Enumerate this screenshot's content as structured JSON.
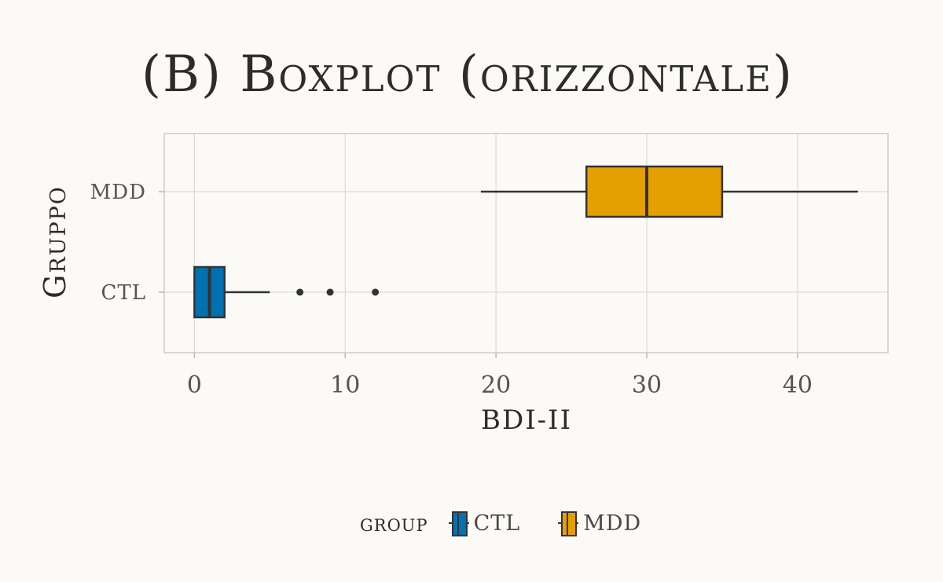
{
  "chart_data": {
    "type": "boxplot",
    "orientation": "horizontal",
    "title": "(B) Boxplot (orizzontale)",
    "xlabel": "BDI-II",
    "ylabel": "Gruppo",
    "xlim": [
      -2,
      46
    ],
    "xticks": [
      0,
      10,
      20,
      30,
      40
    ],
    "xtick_labels": [
      "0",
      "10",
      "20",
      "30",
      "40"
    ],
    "categories": [
      "CTL",
      "MDD"
    ],
    "series": [
      {
        "name": "CTL",
        "color": "#0072b2",
        "whisker_low": 0,
        "q1": 0,
        "median": 1,
        "q3": 2,
        "whisker_high": 5,
        "outliers": [
          7,
          9,
          12
        ]
      },
      {
        "name": "MDD",
        "color": "#e69f00",
        "whisker_low": 19,
        "q1": 26,
        "median": 30,
        "q3": 35,
        "whisker_high": 44,
        "outliers": []
      }
    ],
    "grid": true,
    "legend": {
      "title": "group",
      "placement": "bottom",
      "entries": [
        "CTL",
        "MDD"
      ]
    }
  }
}
